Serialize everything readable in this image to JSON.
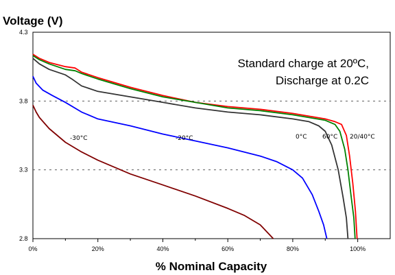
{
  "chart_data": {
    "type": "line",
    "ylabel": "Voltage (V)",
    "xlabel": "% Nominal Capacity",
    "xlim": [
      0,
      110
    ],
    "ylim": [
      2.8,
      4.3
    ],
    "x_ticks": [
      0,
      20,
      40,
      60,
      80,
      100
    ],
    "x_tick_labels": [
      "0%",
      "20%",
      "40%",
      "60%",
      "80%",
      "100%"
    ],
    "y_ticks": [
      2.8,
      3.3,
      3.8,
      4.3
    ],
    "y_tick_labels": [
      "2.8",
      "3.3",
      "3.8",
      "4.3"
    ],
    "grid": "dashed horizontal at 3.3 and 3.8",
    "annotations": [
      "Standard charge at 20ºC,",
      "Discharge at 0.2C"
    ],
    "curve_labels": [
      "-30°C",
      "-20°C",
      "0°C",
      "60°C",
      "20/40°C"
    ],
    "series": [
      {
        "color": "#ff0000",
        "label_ref": "20/40°C",
        "points": [
          [
            0,
            4.14
          ],
          [
            2,
            4.11
          ],
          [
            5,
            4.08
          ],
          [
            10,
            4.05
          ],
          [
            13,
            4.04
          ],
          [
            15,
            4.01
          ],
          [
            20,
            3.97
          ],
          [
            30,
            3.9
          ],
          [
            40,
            3.84
          ],
          [
            50,
            3.79
          ],
          [
            60,
            3.76
          ],
          [
            70,
            3.74
          ],
          [
            80,
            3.71
          ],
          [
            85,
            3.69
          ],
          [
            90,
            3.67
          ],
          [
            93,
            3.65
          ],
          [
            95,
            3.63
          ],
          [
            96.5,
            3.55
          ],
          [
            97.5,
            3.4
          ],
          [
            98.5,
            3.2
          ],
          [
            99.3,
            3.0
          ],
          [
            99.8,
            2.8
          ]
        ]
      },
      {
        "color": "#008000",
        "label_ref": "20/40°C",
        "points": [
          [
            0,
            4.13
          ],
          [
            2,
            4.1
          ],
          [
            5,
            4.07
          ],
          [
            10,
            4.03
          ],
          [
            13,
            4.02
          ],
          [
            15,
            4.0
          ],
          [
            20,
            3.96
          ],
          [
            30,
            3.89
          ],
          [
            40,
            3.83
          ],
          [
            50,
            3.79
          ],
          [
            60,
            3.75
          ],
          [
            70,
            3.73
          ],
          [
            80,
            3.7
          ],
          [
            85,
            3.68
          ],
          [
            90,
            3.66
          ],
          [
            93,
            3.63
          ],
          [
            94.5,
            3.58
          ],
          [
            96,
            3.45
          ],
          [
            97,
            3.3
          ],
          [
            98,
            3.1
          ],
          [
            98.8,
            2.95
          ],
          [
            99.2,
            2.8
          ]
        ]
      },
      {
        "color": "#333333",
        "label_ref": "0°C",
        "points": [
          [
            0,
            4.11
          ],
          [
            2,
            4.07
          ],
          [
            5,
            4.03
          ],
          [
            10,
            3.99
          ],
          [
            12,
            3.96
          ],
          [
            15,
            3.91
          ],
          [
            20,
            3.87
          ],
          [
            30,
            3.83
          ],
          [
            40,
            3.79
          ],
          [
            50,
            3.75
          ],
          [
            60,
            3.72
          ],
          [
            70,
            3.7
          ],
          [
            80,
            3.67
          ],
          [
            85,
            3.65
          ],
          [
            88,
            3.62
          ],
          [
            90,
            3.58
          ],
          [
            92,
            3.48
          ],
          [
            94,
            3.3
          ],
          [
            95.5,
            3.1
          ],
          [
            96.5,
            2.95
          ],
          [
            97,
            2.8
          ]
        ]
      },
      {
        "color": "#0000ff",
        "label_ref": "-20°C",
        "points": [
          [
            0,
            3.98
          ],
          [
            1,
            3.93
          ],
          [
            3,
            3.88
          ],
          [
            6,
            3.84
          ],
          [
            10,
            3.79
          ],
          [
            15,
            3.72
          ],
          [
            20,
            3.67
          ],
          [
            30,
            3.62
          ],
          [
            40,
            3.56
          ],
          [
            50,
            3.51
          ],
          [
            60,
            3.46
          ],
          [
            70,
            3.4
          ],
          [
            75,
            3.36
          ],
          [
            80,
            3.3
          ],
          [
            83,
            3.24
          ],
          [
            86,
            3.12
          ],
          [
            88,
            3.0
          ],
          [
            89.5,
            2.9
          ],
          [
            90.5,
            2.8
          ]
        ]
      },
      {
        "color": "#800000",
        "label_ref": "-30°C",
        "points": [
          [
            0,
            3.77
          ],
          [
            1,
            3.72
          ],
          [
            2,
            3.68
          ],
          [
            5,
            3.6
          ],
          [
            10,
            3.5
          ],
          [
            15,
            3.43
          ],
          [
            20,
            3.37
          ],
          [
            30,
            3.27
          ],
          [
            40,
            3.19
          ],
          [
            50,
            3.11
          ],
          [
            60,
            3.02
          ],
          [
            65,
            2.97
          ],
          [
            70,
            2.9
          ],
          [
            74,
            2.8
          ]
        ]
      }
    ]
  }
}
